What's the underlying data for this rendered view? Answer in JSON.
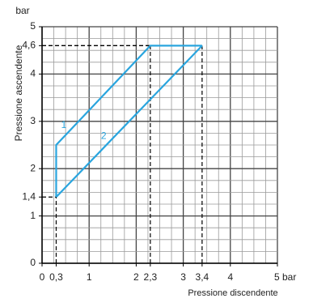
{
  "chart_data": {
    "type": "line",
    "x_label": "Pressione discendente",
    "y_label": "Pressione ascendente",
    "y_unit": "bar",
    "xlim": [
      0,
      5
    ],
    "ylim": [
      0,
      5
    ],
    "xticks": [
      0,
      {
        "value": 0.3,
        "label": "0,3"
      },
      1,
      2,
      {
        "value": 2.3,
        "label": "2,3"
      },
      3,
      {
        "value": 3.4,
        "label": "3,4"
      },
      4,
      {
        "value": 5,
        "label": "5 bar"
      }
    ],
    "yticks": [
      0,
      1,
      {
        "value": 1.4,
        "label": "1,4"
      },
      2,
      3,
      4,
      {
        "value": 4.6,
        "label": "4,6"
      },
      5
    ],
    "grid": true,
    "series": [
      {
        "name": "1",
        "color": "#2aa5de",
        "x": [
          0.3,
          0.3,
          2.3,
          3.4
        ],
        "values": [
          1.4,
          2.5,
          4.6,
          4.6
        ]
      },
      {
        "name": "2",
        "color": "#2aa5de",
        "x": [
          0.3,
          3.4
        ],
        "values": [
          1.4,
          4.6
        ]
      }
    ]
  }
}
